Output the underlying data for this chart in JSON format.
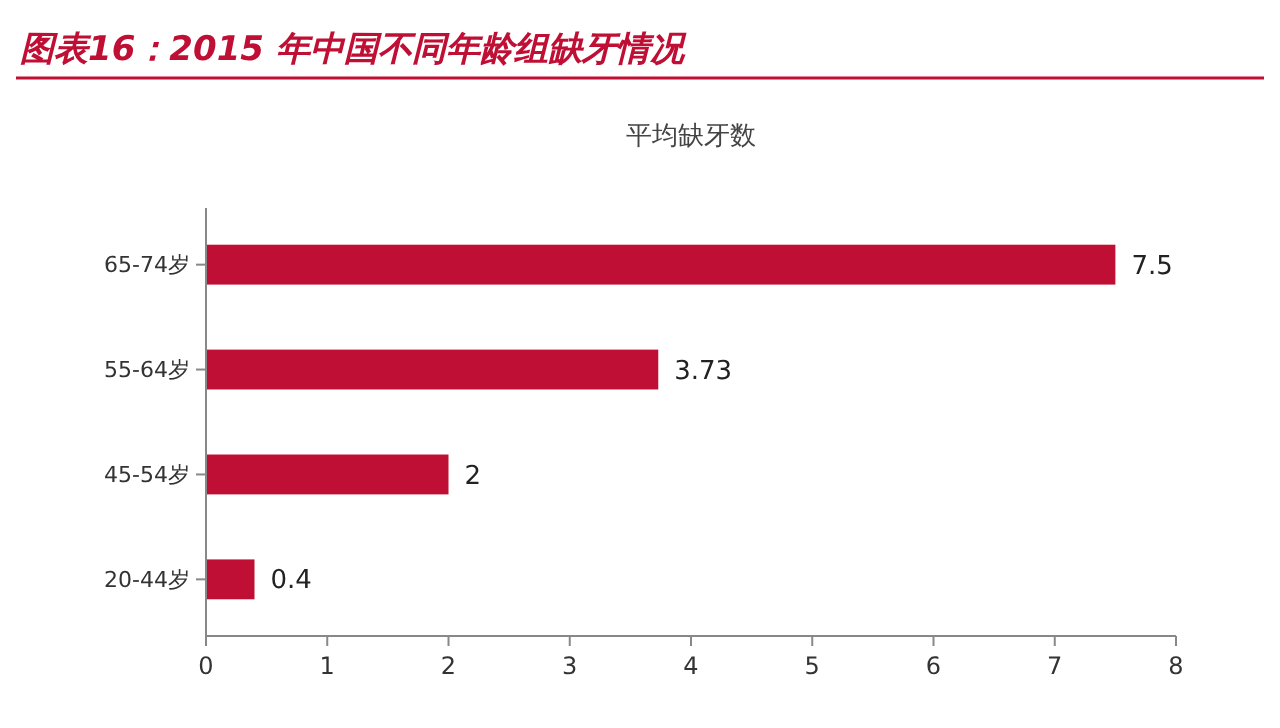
{
  "chart_data": {
    "type": "bar",
    "orientation": "horizontal",
    "title": "图表16：2015 年中国不同年龄组缺牙情况",
    "subtitle": "平均缺牙数",
    "categories": [
      "65-74岁",
      "55-64岁",
      "45-54岁",
      "20-44岁"
    ],
    "values": [
      7.5,
      3.73,
      2,
      0.4
    ],
    "color": "#c00f35",
    "xlim": [
      0,
      8
    ],
    "xticks": [
      0,
      1,
      2,
      3,
      4,
      5,
      6,
      7,
      8
    ],
    "grid": false,
    "data_labels": true
  }
}
